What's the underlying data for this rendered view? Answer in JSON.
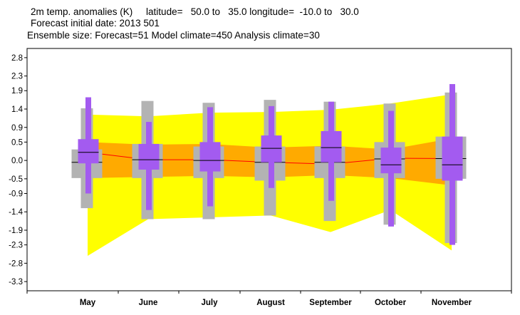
{
  "header": {
    "line1": "2m temp. anomalies (K)     latitude=   50.0 to   35.0 longitude=  -10.0 to   30.0",
    "line2": "Forecast initial date: 2013 501",
    "line3": "Ensemble size: Forecast=51 Model climate=450 Analysis climate=30"
  },
  "colors": {
    "yellow_band": "#ffff00",
    "orange_band": "#ffaa00",
    "median_line": "#ff0000",
    "climate_box": "#b3b3b3",
    "forecast_box": "#a35bf0",
    "median_tick": "#000000"
  },
  "chart_data": {
    "type": "box",
    "categories": [
      "May",
      "June",
      "July",
      "August",
      "September",
      "October",
      "November"
    ],
    "ylim": [
      -3.55,
      3.05
    ],
    "y_ticks": [
      "2.8",
      "2.3",
      "1.9",
      "1.4",
      "0.9",
      "0.5",
      "0.0",
      "-0.5",
      "-0.9",
      "-1.4",
      "-1.9",
      "-2.3",
      "-2.8",
      "-3.3"
    ],
    "y_tick_values": [
      2.8,
      2.3,
      1.9,
      1.4,
      0.9,
      0.5,
      0.0,
      -0.5,
      -0.9,
      -1.4,
      -1.9,
      -2.3,
      -2.8,
      -3.3
    ],
    "title": "",
    "xlabel": "",
    "ylabel": "",
    "yellow_band": {
      "upper": [
        1.25,
        1.2,
        1.3,
        1.32,
        1.38,
        1.55,
        1.8
      ],
      "lower": [
        -2.6,
        -1.6,
        -1.55,
        -1.5,
        -1.95,
        -1.35,
        -2.45
      ]
    },
    "orange_band": {
      "upper": [
        0.5,
        0.43,
        0.45,
        0.35,
        0.4,
        0.3,
        0.6
      ],
      "lower": [
        -0.48,
        -0.45,
        -0.42,
        -0.46,
        -0.4,
        -0.48,
        -0.68
      ]
    },
    "median_line": [
      0.22,
      0.02,
      0.02,
      -0.05,
      -0.1,
      0.06,
      0.05
    ],
    "climate": [
      {
        "min": -1.3,
        "q1": -0.48,
        "median": -0.05,
        "q3": 0.3,
        "max": 1.42
      },
      {
        "min": -1.6,
        "q1": -0.48,
        "median": 0.02,
        "q3": 0.45,
        "max": 1.62
      },
      {
        "min": -1.6,
        "q1": -0.48,
        "median": 0.0,
        "q3": 0.38,
        "max": 1.57
      },
      {
        "min": -1.5,
        "q1": -0.55,
        "median": -0.05,
        "q3": 0.38,
        "max": 1.65
      },
      {
        "min": -1.65,
        "q1": -0.48,
        "median": -0.05,
        "q3": 0.38,
        "max": 1.6
      },
      {
        "min": -1.75,
        "q1": -0.48,
        "median": 0.04,
        "q3": 0.5,
        "max": 1.55
      },
      {
        "min": -2.25,
        "q1": -0.5,
        "median": 0.05,
        "q3": 0.65,
        "max": 1.85
      }
    ],
    "forecast": [
      {
        "min": -0.9,
        "q1": -0.08,
        "median": 0.22,
        "q3": 0.58,
        "max": 1.72
      },
      {
        "min": -1.35,
        "q1": -0.25,
        "median": 0.02,
        "q3": 0.45,
        "max": 1.05
      },
      {
        "min": -1.25,
        "q1": -0.3,
        "median": 0.0,
        "q3": 0.5,
        "max": 1.45
      },
      {
        "min": -0.75,
        "q1": -0.05,
        "median": 0.33,
        "q3": 0.68,
        "max": 1.48
      },
      {
        "min": -1.1,
        "q1": -0.05,
        "median": 0.35,
        "q3": 0.8,
        "max": 1.6
      },
      {
        "min": -1.8,
        "q1": -0.35,
        "median": -0.12,
        "q3": 0.35,
        "max": 1.35
      },
      {
        "min": -2.3,
        "q1": -0.55,
        "median": -0.12,
        "q3": 0.65,
        "max": 2.08
      }
    ]
  }
}
